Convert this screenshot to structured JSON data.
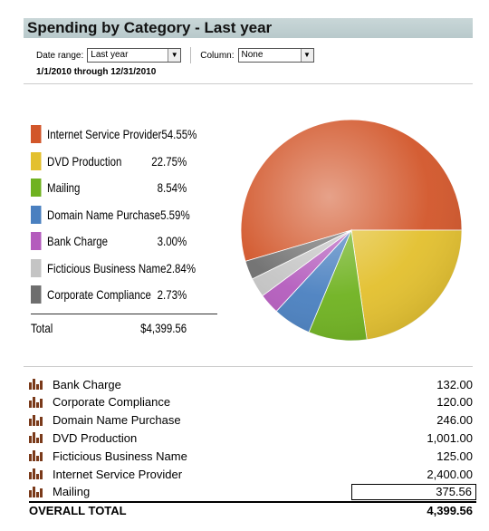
{
  "report": {
    "title": "Spending by Category - Last year",
    "date_range_label": "Date range:",
    "date_range_value": "Last year",
    "column_label": "Column:",
    "column_value": "None",
    "date_range_text": "1/1/2010 through 12/31/2010"
  },
  "legend": {
    "items": [
      {
        "label": "Internet Service Provider",
        "pct": "54.55%",
        "color": "#d2562a"
      },
      {
        "label": "DVD Production",
        "pct": "22.75%",
        "color": "#e3c02e"
      },
      {
        "label": "Mailing",
        "pct": "8.54%",
        "color": "#6fb220"
      },
      {
        "label": "Domain Name Purchase",
        "pct": "5.59%",
        "color": "#4a80c0"
      },
      {
        "label": "Bank Charge",
        "pct": "3.00%",
        "color": "#b45cbd"
      },
      {
        "label": "Ficticious Business Name",
        "pct": "2.84%",
        "color": "#c4c4c4"
      },
      {
        "label": "Corporate Compliance",
        "pct": "2.73%",
        "color": "#6e6e6e"
      }
    ],
    "total_label": "Total",
    "total_value": "$4,399.56"
  },
  "chart_data": {
    "type": "pie",
    "categories": [
      "Internet Service Provider",
      "DVD Production",
      "Mailing",
      "Domain Name Purchase",
      "Bank Charge",
      "Ficticious Business Name",
      "Corporate Compliance"
    ],
    "values": [
      54.55,
      22.75,
      8.54,
      5.59,
      3.0,
      2.84,
      2.73
    ],
    "colors": [
      "#d2562a",
      "#e3c02e",
      "#6fb220",
      "#4a80c0",
      "#b45cbd",
      "#c4c4c4",
      "#6e6e6e"
    ]
  },
  "table": {
    "rows": [
      {
        "label": "Bank Charge",
        "value": "132.00"
      },
      {
        "label": "Corporate Compliance",
        "value": "120.00"
      },
      {
        "label": "Domain Name Purchase",
        "value": "246.00"
      },
      {
        "label": "DVD Production",
        "value": "1,001.00"
      },
      {
        "label": "Ficticious Business Name",
        "value": "125.00"
      },
      {
        "label": "Internet Service Provider",
        "value": "2,400.00"
      },
      {
        "label": "Mailing",
        "value": "375.56"
      }
    ],
    "overall_label": "OVERALL TOTAL",
    "overall_value": "4,399.56"
  }
}
